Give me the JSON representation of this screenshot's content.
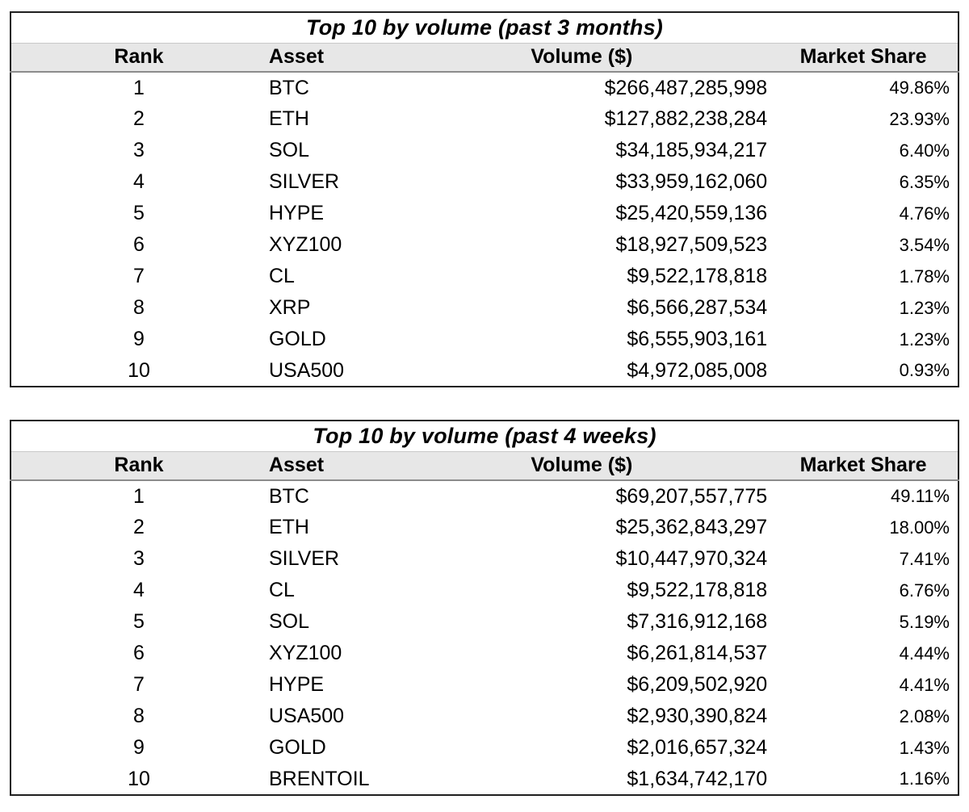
{
  "chart_data": [
    {
      "type": "table",
      "title": "Top 10 by volume (past 3 months)",
      "columns": [
        "Rank",
        "Asset",
        "Volume ($)",
        "Market Share"
      ],
      "rows": [
        {
          "rank": "1",
          "asset": "BTC",
          "volume": "$266,487,285,998",
          "market_share": "49.86%"
        },
        {
          "rank": "2",
          "asset": "ETH",
          "volume": "$127,882,238,284",
          "market_share": "23.93%"
        },
        {
          "rank": "3",
          "asset": "SOL",
          "volume": "$34,185,934,217",
          "market_share": "6.40%"
        },
        {
          "rank": "4",
          "asset": "SILVER",
          "volume": "$33,959,162,060",
          "market_share": "6.35%"
        },
        {
          "rank": "5",
          "asset": "HYPE",
          "volume": "$25,420,559,136",
          "market_share": "4.76%"
        },
        {
          "rank": "6",
          "asset": "XYZ100",
          "volume": "$18,927,509,523",
          "market_share": "3.54%"
        },
        {
          "rank": "7",
          "asset": "CL",
          "volume": "$9,522,178,818",
          "market_share": "1.78%"
        },
        {
          "rank": "8",
          "asset": "XRP",
          "volume": "$6,566,287,534",
          "market_share": "1.23%"
        },
        {
          "rank": "9",
          "asset": "GOLD",
          "volume": "$6,555,903,161",
          "market_share": "1.23%"
        },
        {
          "rank": "10",
          "asset": "USA500",
          "volume": "$4,972,085,008",
          "market_share": "0.93%"
        }
      ]
    },
    {
      "type": "table",
      "title": "Top 10 by volume (past 4 weeks)",
      "columns": [
        "Rank",
        "Asset",
        "Volume ($)",
        "Market Share"
      ],
      "rows": [
        {
          "rank": "1",
          "asset": "BTC",
          "volume": "$69,207,557,775",
          "market_share": "49.11%"
        },
        {
          "rank": "2",
          "asset": "ETH",
          "volume": "$25,362,843,297",
          "market_share": "18.00%"
        },
        {
          "rank": "3",
          "asset": "SILVER",
          "volume": "$10,447,970,324",
          "market_share": "7.41%"
        },
        {
          "rank": "4",
          "asset": "CL",
          "volume": "$9,522,178,818",
          "market_share": "6.76%"
        },
        {
          "rank": "5",
          "asset": "SOL",
          "volume": "$7,316,912,168",
          "market_share": "5.19%"
        },
        {
          "rank": "6",
          "asset": "XYZ100",
          "volume": "$6,261,814,537",
          "market_share": "4.44%"
        },
        {
          "rank": "7",
          "asset": "HYPE",
          "volume": "$6,209,502,920",
          "market_share": "4.41%"
        },
        {
          "rank": "8",
          "asset": "USA500",
          "volume": "$2,930,390,824",
          "market_share": "2.08%"
        },
        {
          "rank": "9",
          "asset": "GOLD",
          "volume": "$2,016,657,324",
          "market_share": "1.43%"
        },
        {
          "rank": "10",
          "asset": "BRENTOIL",
          "volume": "$1,634,742,170",
          "market_share": "1.16%"
        }
      ]
    }
  ],
  "colors": {
    "page_bg": "#ffffff",
    "text": "#000000",
    "table_border": "#1f1f1f",
    "header_bg": "#e7e7e7",
    "header_rule": "#8c8c8c"
  }
}
